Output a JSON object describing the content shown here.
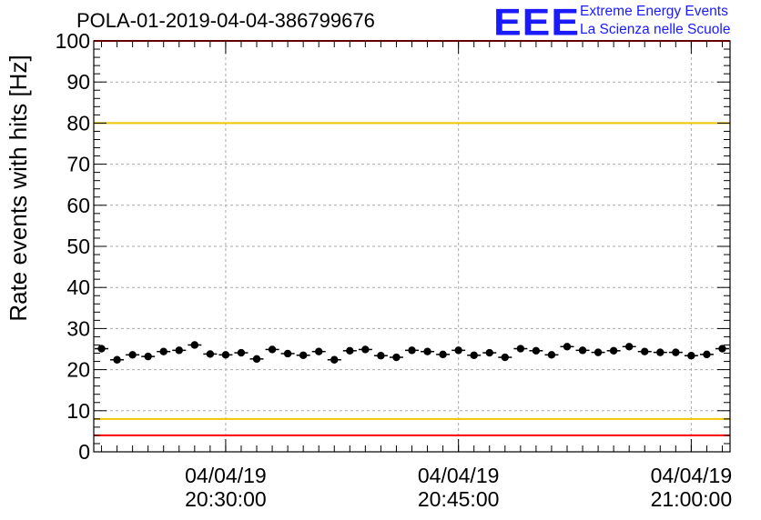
{
  "header": {
    "run_title": "POLA-01-2019-04-04-386799676",
    "logo_text": "EEE",
    "logo_line1": "Extreme Energy Events",
    "logo_line2": "La Scienza nelle Scuole"
  },
  "colors": {
    "red_limit": "#ff0000",
    "yellow_limit": "#f2c400",
    "markers": "#000000",
    "grid": "#aaaaaa",
    "logo": "#1a1aff"
  },
  "chart_data": {
    "type": "scatter",
    "title": "POLA-01-2019-04-04-386799676",
    "xlabel": "",
    "ylabel": "Rate events with hits [Hz]",
    "x_axis": "time",
    "xlim": [
      "2019-04-04 20:21:30",
      "2019-04-04 21:02:30"
    ],
    "ylim": [
      0,
      100
    ],
    "y_ticks": [
      0,
      10,
      20,
      30,
      40,
      50,
      60,
      70,
      80,
      90,
      100
    ],
    "x_ticks": [
      {
        "time": "2019-04-04 20:30:00",
        "date_label": "04/04/19",
        "time_label": "20:30:00"
      },
      {
        "time": "2019-04-04 20:45:00",
        "date_label": "04/04/19",
        "time_label": "20:45:00"
      },
      {
        "time": "2019-04-04 21:00:00",
        "date_label": "04/04/19",
        "time_label": "21:00:00"
      }
    ],
    "grid": true,
    "reference_lines": [
      {
        "y": 100,
        "color": "red"
      },
      {
        "y": 80,
        "color": "yellow"
      },
      {
        "y": 8,
        "color": "yellow"
      },
      {
        "y": 4,
        "color": "red"
      }
    ],
    "series": [
      {
        "x": [
          "20:22:00",
          "20:23:00",
          "20:24:00",
          "20:25:00",
          "20:26:00",
          "20:27:00",
          "20:28:00",
          "20:29:00",
          "20:30:00",
          "20:31:00",
          "20:32:00",
          "20:33:00",
          "20:34:00",
          "20:35:00",
          "20:36:00",
          "20:37:00",
          "20:38:00",
          "20:39:00",
          "20:40:00",
          "20:41:00",
          "20:42:00",
          "20:43:00",
          "20:44:00",
          "20:45:00",
          "20:46:00",
          "20:47:00",
          "20:48:00",
          "20:49:00",
          "20:50:00",
          "20:51:00",
          "20:52:00",
          "20:53:00",
          "20:54:00",
          "20:55:00",
          "20:56:00",
          "20:57:00",
          "20:58:00",
          "20:59:00",
          "21:00:00",
          "21:01:00",
          "21:02:00"
        ],
        "y": [
          25.1,
          22.4,
          23.6,
          23.2,
          24.4,
          24.7,
          26.0,
          23.8,
          23.6,
          24.1,
          22.6,
          24.9,
          23.9,
          23.5,
          24.4,
          22.4,
          24.6,
          24.9,
          23.4,
          23.0,
          24.7,
          24.4,
          23.7,
          24.7,
          23.5,
          24.1,
          23.0,
          25.1,
          24.6,
          23.6,
          25.6,
          24.7,
          24.2,
          24.6,
          25.6,
          24.4,
          24.2,
          24.2,
          23.4,
          23.7,
          25.1
        ]
      }
    ]
  }
}
